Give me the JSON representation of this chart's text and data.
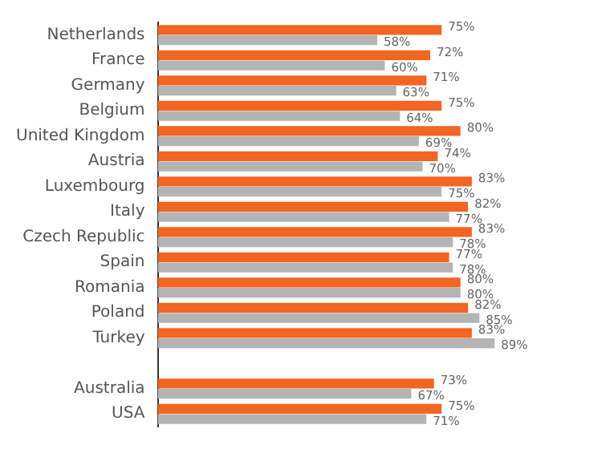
{
  "chart_data": {
    "type": "bar",
    "orientation": "horizontal",
    "categories": [
      "Netherlands",
      "France",
      "Germany",
      "Belgium",
      "United Kingdom",
      "Austria",
      "Luxembourg",
      "Italy",
      "Czech Republic",
      "Spain",
      "Romania",
      "Poland",
      "Turkey",
      null,
      "Australia",
      "USA"
    ],
    "series": [
      {
        "color": "#f26522",
        "values": [
          75,
          72,
          71,
          75,
          80,
          74,
          83,
          82,
          83,
          77,
          80,
          82,
          83,
          null,
          73,
          75
        ],
        "value_labels": [
          "75%",
          "72%",
          "71%",
          "75%",
          "80%",
          "74%",
          "83%",
          "82%",
          "83%",
          "77%",
          "80%",
          "82%",
          "83%",
          null,
          "73%",
          "75%"
        ]
      },
      {
        "color": "#b4b4b4",
        "values": [
          58,
          60,
          63,
          64,
          69,
          70,
          75,
          77,
          78,
          78,
          80,
          85,
          89,
          null,
          67,
          71
        ],
        "value_labels": [
          "58%",
          "60%",
          "63%",
          "64%",
          "69%",
          "70%",
          "75%",
          "77%",
          "78%",
          "78%",
          "80%",
          "85%",
          "89%",
          null,
          "67%",
          "71%"
        ]
      }
    ],
    "tick_labels": "y",
    "grid": false,
    "legend": false
  }
}
